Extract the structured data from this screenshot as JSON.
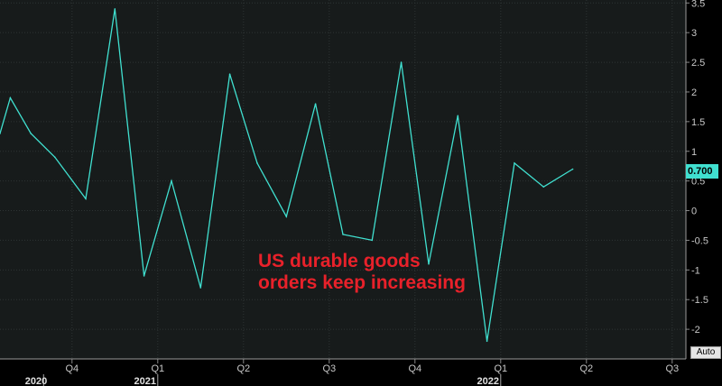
{
  "chart_data": {
    "type": "line",
    "x_ticks": [
      {
        "label": "Q4",
        "x": 2020.75
      },
      {
        "label": "Q1",
        "x": 2021.0
      },
      {
        "label": "Q2",
        "x": 2021.25
      },
      {
        "label": "Q3",
        "x": 2021.5
      },
      {
        "label": "Q4",
        "x": 2021.75
      },
      {
        "label": "Q1",
        "x": 2022.0
      },
      {
        "label": "Q2",
        "x": 2022.25
      },
      {
        "label": "Q3",
        "x": 2022.5
      }
    ],
    "year_labels": [
      {
        "label": "2020",
        "x": 2020.667
      },
      {
        "label": "2021",
        "x": 2021.0
      },
      {
        "label": "2022",
        "x": 2022.0
      }
    ],
    "y_ticks": [
      3.5,
      3,
      2.5,
      2,
      1.5,
      1,
      0.5,
      0,
      -0.5,
      -1,
      -1.5,
      -2
    ],
    "y_tick_labels": [
      "3.5",
      "3",
      "2.5",
      "2",
      "1.5",
      "1",
      "0.5",
      "0",
      "-0.5",
      "-1",
      "-1.5",
      "-2"
    ],
    "xlim": [
      2020.54,
      2022.54
    ],
    "ylim": [
      -2.5,
      3.55
    ],
    "grid": true,
    "series": [
      {
        "color": "#40e0d0",
        "points": [
          [
            2020.54,
            1.3
          ],
          [
            2020.57,
            1.9
          ],
          [
            2020.63,
            1.3
          ],
          [
            2020.7,
            0.9
          ],
          [
            2020.79,
            0.2
          ],
          [
            2020.875,
            3.4
          ],
          [
            2020.96,
            -1.1
          ],
          [
            2021.04,
            0.5
          ],
          [
            2021.125,
            -1.3
          ],
          [
            2021.21,
            2.3
          ],
          [
            2021.29,
            0.8
          ],
          [
            2021.375,
            -0.1
          ],
          [
            2021.46,
            1.8
          ],
          [
            2021.54,
            -0.4
          ],
          [
            2021.625,
            -0.5
          ],
          [
            2021.71,
            2.5
          ],
          [
            2021.79,
            -0.9
          ],
          [
            2021.875,
            1.6
          ],
          [
            2021.96,
            -2.2
          ],
          [
            2022.04,
            0.8
          ],
          [
            2022.125,
            0.4
          ],
          [
            2022.21,
            0.7
          ]
        ]
      }
    ],
    "last_value_label": "0.700",
    "annotation": [
      "US durable goods",
      "orders keep increasing"
    ]
  },
  "controls": {
    "auto_label": "Auto"
  }
}
